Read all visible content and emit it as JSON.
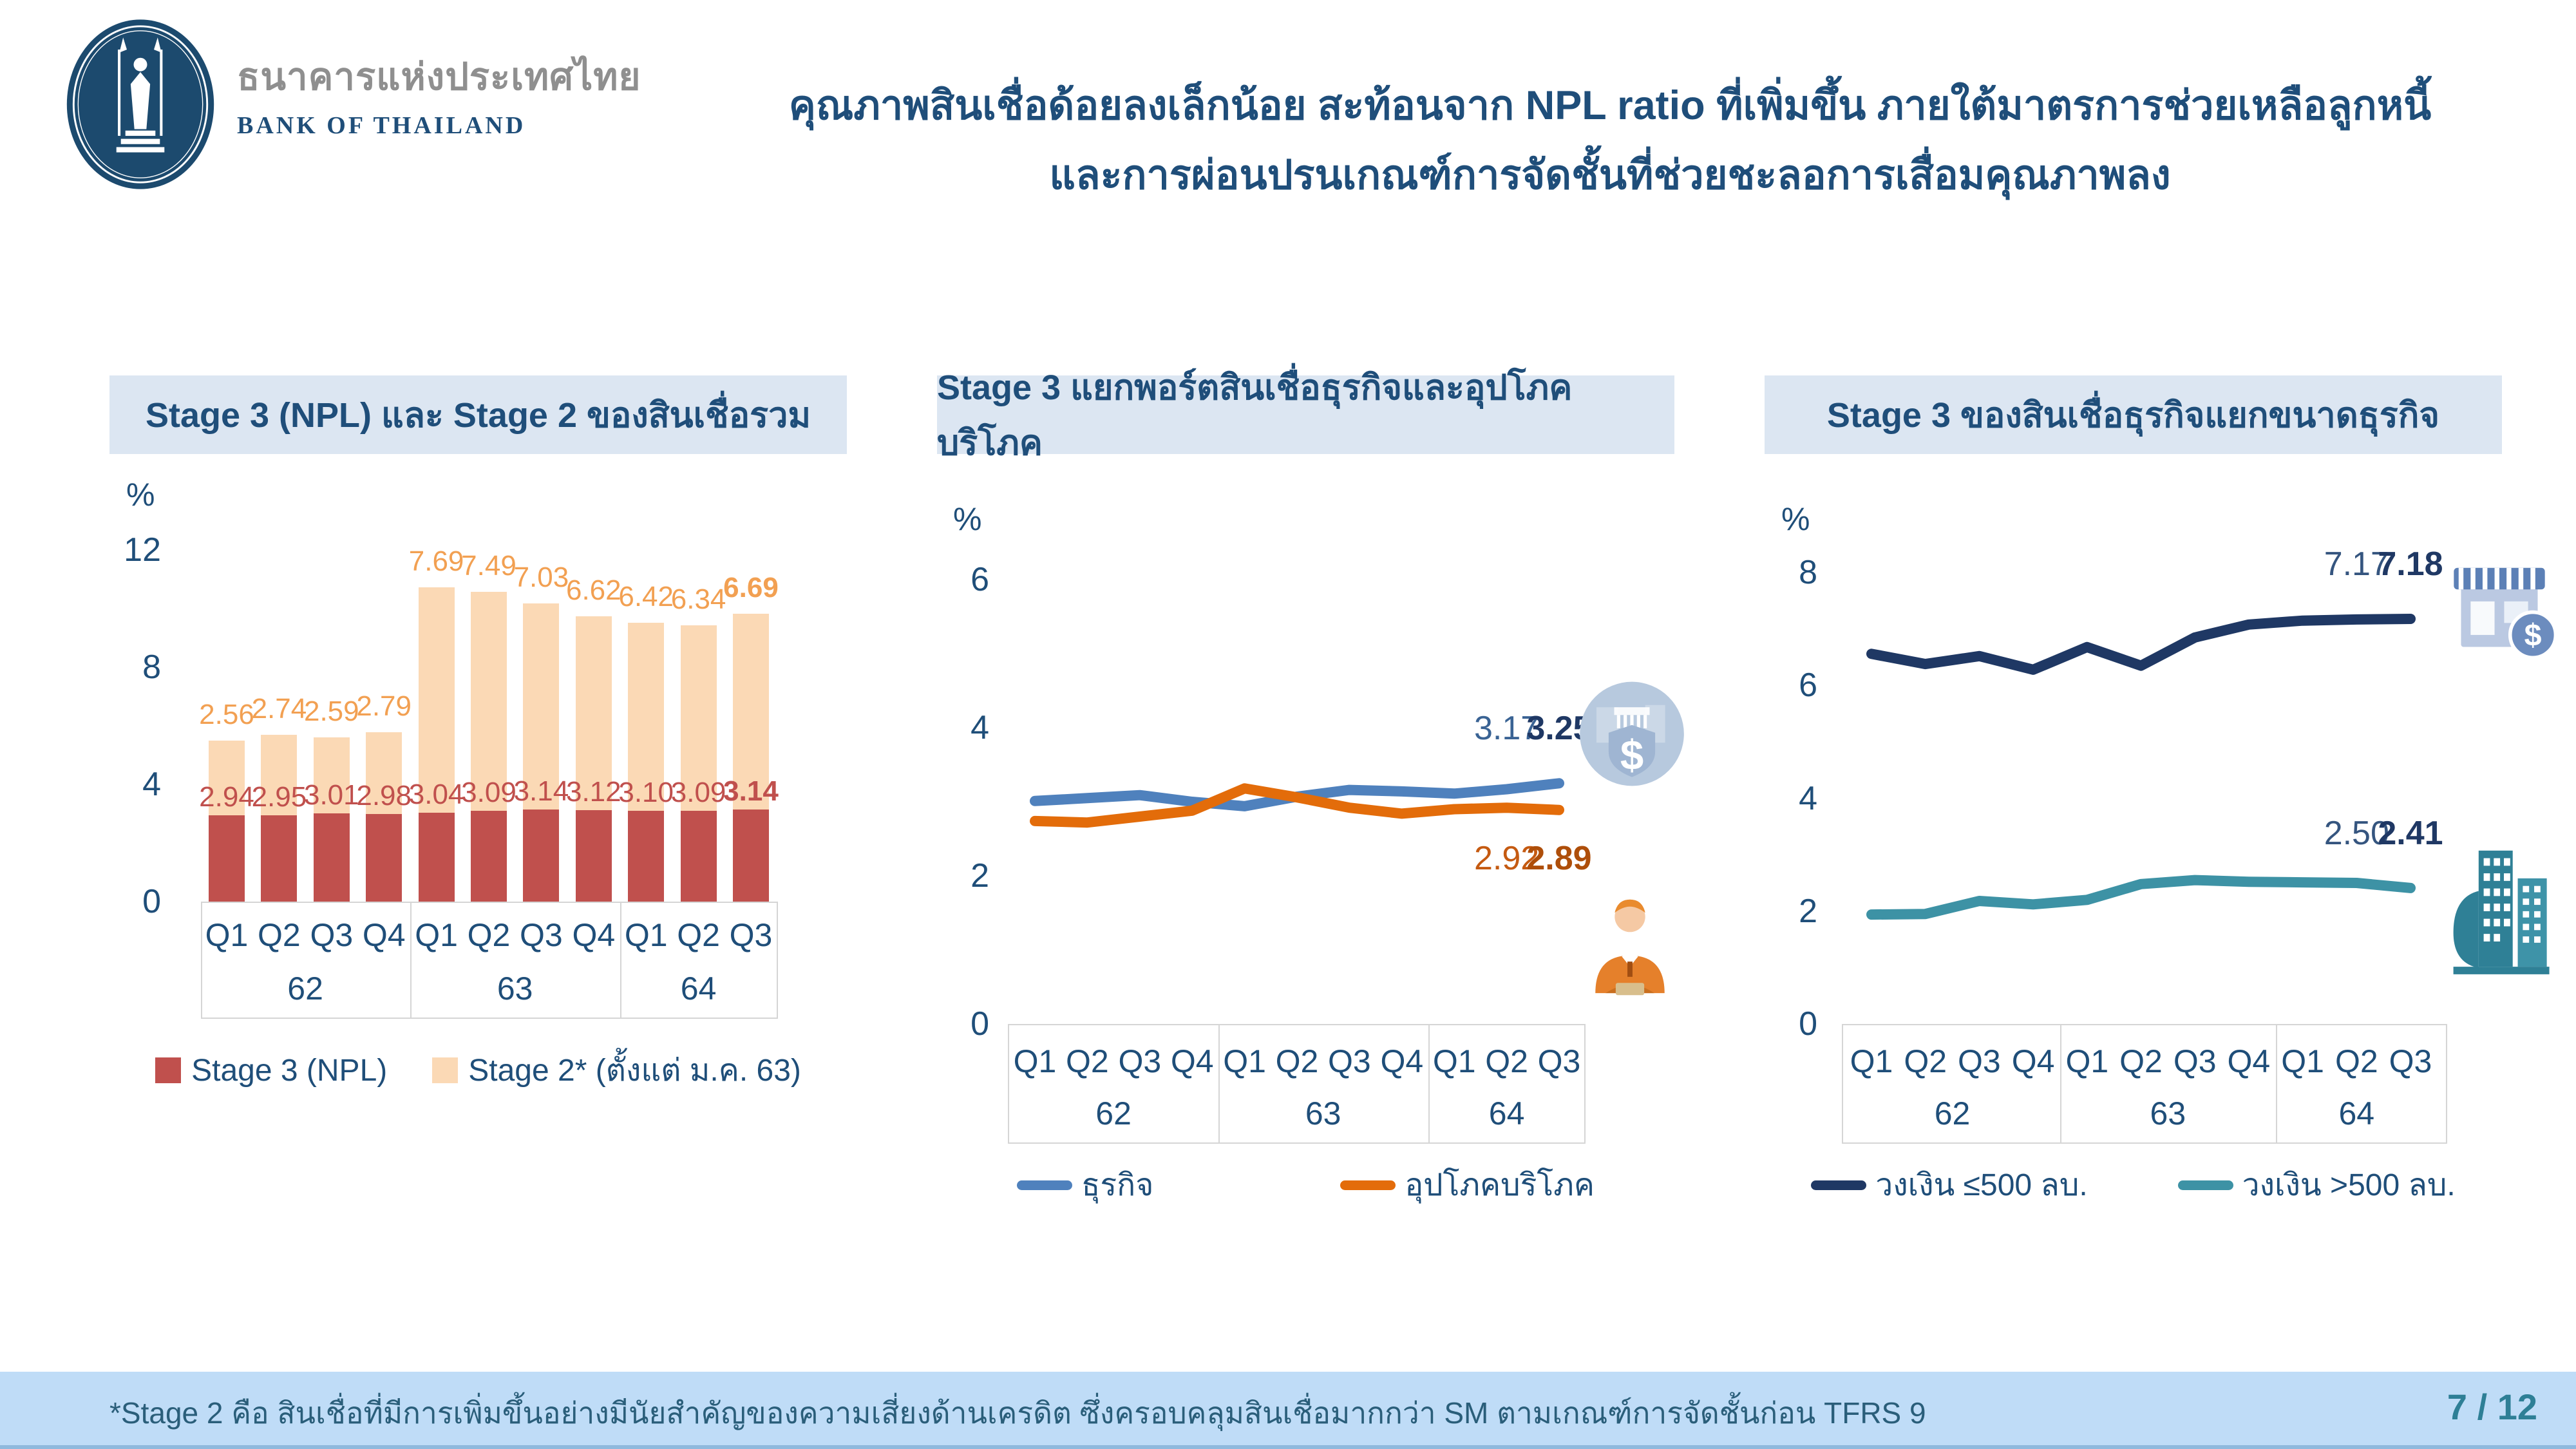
{
  "header": {
    "logo": {
      "thai_name": "ธนาคารแห่งประเทศไทย",
      "eng_name": "BANK OF THAILAND"
    },
    "title_line1": "คุณภาพสินเชื่อด้อยลงเล็กน้อย สะท้อนจาก NPL ratio ที่เพิ่มขึ้น ภายใต้มาตรการช่วยเหลือลูกหนี้",
    "title_line2": "และการผ่อนปรนเกณฑ์การจัดชั้นที่ช่วยชะลอการเสื่อมคุณภาพลง"
  },
  "footer": {
    "note": "*Stage 2 คือ สินเชื่อที่มีการเพิ่มขึ้นอย่างมีนัยสำคัญของความเสี่ยงด้านเครดิต ซึ่งครอบคลุมสินเชื่อมากกว่า SM ตามเกณฑ์การจัดชั้นก่อน TFRS 9",
    "page": "7 / 12"
  },
  "colors": {
    "navy_text": "#1F4E79",
    "panel_title_bg": "#DCE6F2",
    "stage3_red": "#C0504D",
    "stage2_peach": "#FBD9B5",
    "stage2_label_orange": "#F2A052",
    "business_blue": "#4F81BD",
    "consumer_orange": "#E36C0A",
    "small_biz_navy": "#1F3864",
    "large_biz_teal": "#3D92A5",
    "footer_bg": "#BFDCF7",
    "page_number_teal": "#2E7F96"
  },
  "chart_data": [
    {
      "type": "bar",
      "stacked": true,
      "title": "Stage 3 (NPL) และ Stage 2 ของสินเชื่อรวม",
      "unit_label": "%",
      "ylim": [
        0,
        12
      ],
      "yticks": [
        0,
        4,
        8,
        12
      ],
      "grid": false,
      "legend_position": "bottom",
      "categories": [
        "Q1",
        "Q2",
        "Q3",
        "Q4",
        "Q1",
        "Q2",
        "Q3",
        "Q4",
        "Q1",
        "Q2",
        "Q3"
      ],
      "year_groups": [
        {
          "label": "62",
          "span": 4
        },
        {
          "label": "63",
          "span": 4
        },
        {
          "label": "64",
          "span": 3
        }
      ],
      "series": [
        {
          "name": "Stage 3 (NPL)",
          "color": "#C0504D",
          "label_color": "#C0504D",
          "values": [
            2.94,
            2.95,
            3.01,
            2.98,
            3.04,
            3.09,
            3.14,
            3.12,
            3.1,
            3.09,
            3.14
          ]
        },
        {
          "name": "Stage 2* (ตั้งแต่ ม.ค. 63)",
          "color": "#FBD9B5",
          "label_color": "#F2A052",
          "values": [
            2.56,
            2.74,
            2.59,
            2.79,
            7.69,
            7.49,
            7.03,
            6.62,
            6.42,
            6.34,
            6.69
          ]
        }
      ]
    },
    {
      "type": "line",
      "title": "Stage 3 แยกพอร์ตสินเชื่อธุรกิจและอุปโภคบริโภค",
      "unit_label": "%",
      "ylim": [
        0,
        6
      ],
      "yticks": [
        0,
        2,
        4,
        6
      ],
      "grid": false,
      "legend_position": "bottom",
      "categories": [
        "Q1",
        "Q2",
        "Q3",
        "Q4",
        "Q1",
        "Q2",
        "Q3",
        "Q4",
        "Q1",
        "Q2",
        "Q3"
      ],
      "year_groups": [
        {
          "label": "62",
          "span": 4
        },
        {
          "label": "63",
          "span": 4
        },
        {
          "label": "64",
          "span": 3
        }
      ],
      "series": [
        {
          "name": "ธุรกิจ",
          "color": "#4F81BD",
          "icon": "money",
          "values": [
            3.01,
            3.05,
            3.09,
            3.0,
            2.94,
            3.07,
            3.16,
            3.14,
            3.11,
            3.17,
            3.25
          ],
          "end_labels": {
            "prev": "3.17",
            "last": "3.25",
            "prev_color": "#3A6394",
            "last_color": "#1F3864",
            "side": "above"
          }
        },
        {
          "name": "อุปโภคบริโภค",
          "color": "#E36C0A",
          "icon": "businessman",
          "values": [
            2.74,
            2.72,
            2.8,
            2.88,
            3.18,
            3.06,
            2.92,
            2.84,
            2.9,
            2.92,
            2.89
          ],
          "end_labels": {
            "prev": "2.92",
            "last": "2.89",
            "prev_color": "#C55A11",
            "last_color": "#AE4E0A",
            "side": "below"
          }
        }
      ]
    },
    {
      "type": "line",
      "title": "Stage 3 ของสินเชื่อธุรกิจแยกขนาดธุรกิจ",
      "unit_label": "%",
      "ylim": [
        0,
        8
      ],
      "yticks": [
        0,
        2,
        4,
        6,
        8
      ],
      "grid": false,
      "legend_position": "bottom",
      "categories": [
        "Q1",
        "Q2",
        "Q3",
        "Q4",
        "Q1",
        "Q2",
        "Q3",
        "Q4",
        "Q1",
        "Q2",
        "Q3"
      ],
      "year_groups": [
        {
          "label": "62",
          "span": 4
        },
        {
          "label": "63",
          "span": 4
        },
        {
          "label": "64",
          "span": 3
        }
      ],
      "series": [
        {
          "name": "วงเงิน ≤500 ลบ.",
          "color": "#1F3864",
          "icon": "storefront",
          "values": [
            6.56,
            6.38,
            6.52,
            6.28,
            6.68,
            6.35,
            6.85,
            7.08,
            7.15,
            7.17,
            7.18
          ],
          "end_labels": {
            "prev": "7.17",
            "last": "7.18",
            "prev_color": "#35557F",
            "last_color": "#1F3864",
            "side": "above"
          }
        },
        {
          "name": "วงเงิน >500 ลบ.",
          "color": "#3D92A5",
          "icon": "buildings",
          "values": [
            1.94,
            1.95,
            2.18,
            2.12,
            2.2,
            2.48,
            2.55,
            2.52,
            2.51,
            2.5,
            2.41
          ],
          "end_labels": {
            "prev": "2.50",
            "last": "2.41",
            "prev_color": "#35557F",
            "last_color": "#1F3864",
            "side": "above"
          }
        }
      ]
    }
  ]
}
